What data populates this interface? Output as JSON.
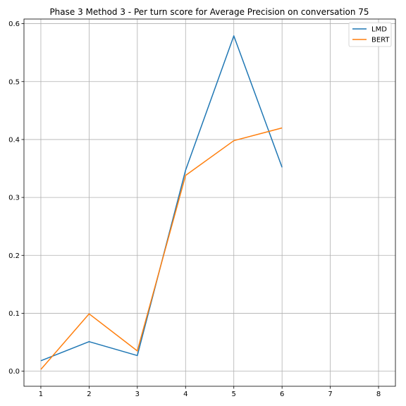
{
  "chart_data": {
    "type": "line",
    "title": "Phase 3 Method 3 - Per turn score for Average Precision on conversation 75",
    "xlabel": "",
    "ylabel": "",
    "x_ticks": [
      "1",
      "2",
      "3",
      "4",
      "5",
      "6",
      "7",
      "8"
    ],
    "y_ticks": [
      "0.0",
      "0.1",
      "0.2",
      "0.3",
      "0.4",
      "0.5",
      "0.6"
    ],
    "xlim": [
      0.65,
      8.35
    ],
    "ylim": [
      -0.026,
      0.608
    ],
    "grid": true,
    "legend_position": "top-right",
    "series": [
      {
        "name": "LMD",
        "color": "#1f77b4",
        "x": [
          1,
          2,
          3,
          4,
          5,
          6
        ],
        "y": [
          0.018,
          0.051,
          0.027,
          0.347,
          0.579,
          0.352
        ]
      },
      {
        "name": "BERT",
        "color": "#ff7f0e",
        "x": [
          1,
          2,
          3,
          4,
          5,
          6
        ],
        "y": [
          0.003,
          0.099,
          0.035,
          0.338,
          0.398,
          0.42
        ]
      }
    ]
  }
}
